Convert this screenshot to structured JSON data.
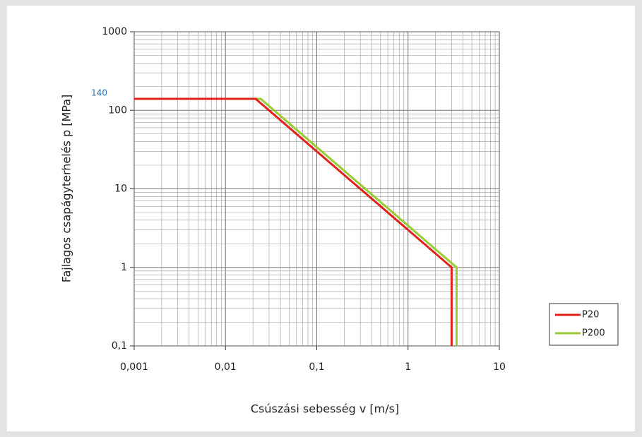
{
  "chart_data": {
    "type": "line",
    "xlabel": "Csúszási sebesség v [m/s]",
    "ylabel": "Fajlagos csapágyterhelés p [MPa]",
    "x_log": true,
    "y_log": true,
    "grid": true,
    "minor_grid": true,
    "legend": "right",
    "xlim": [
      0.001,
      10
    ],
    "ylim": [
      0.1,
      1000
    ],
    "xticks": [
      {
        "value": 0.001,
        "label": "0,001"
      },
      {
        "value": 0.01,
        "label": "0,01"
      },
      {
        "value": 0.1,
        "label": "0,1"
      },
      1,
      10
    ],
    "yticks": [
      {
        "value": 0.1,
        "label": "0,1"
      },
      1,
      10,
      100,
      1000
    ],
    "annotations": [
      {
        "label": "140",
        "y": 140
      }
    ],
    "series": [
      {
        "name": "P20",
        "color": "#e3211b",
        "x": [
          0.001,
          0.0214,
          3,
          3
        ],
        "values": [
          140,
          140,
          1,
          0.1
        ]
      },
      {
        "name": "P200",
        "color": "#99cc33",
        "x": [
          0.001,
          0.0243,
          3.4,
          3.4
        ],
        "values": [
          140,
          140,
          1,
          0.1
        ]
      }
    ]
  }
}
